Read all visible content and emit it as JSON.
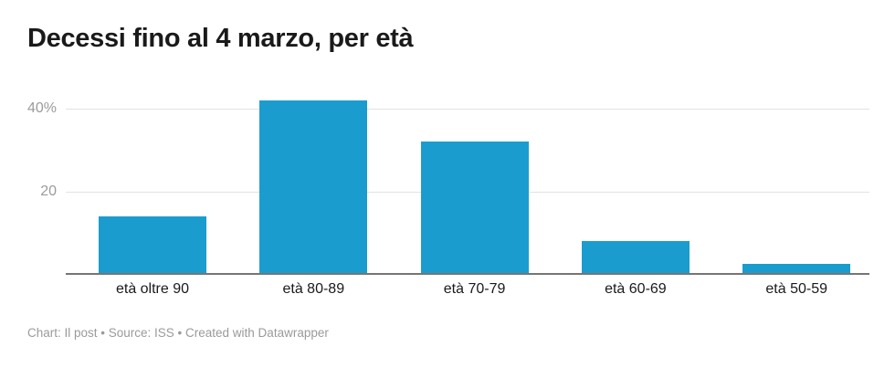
{
  "title": "Decessi fino al 4 marzo, per età",
  "footer": "Chart: Il post • Source: ISS • Created with Datawrapper",
  "colors": {
    "bar": "#1a9dce",
    "title_text": "#1a1a1a",
    "ytick_text": "#9b9b9b",
    "xtick_text": "#1a1a1a",
    "gridline": "#e2e2e2",
    "baseline": "#757575",
    "footer_text": "#9a9a9a",
    "background": "#ffffff"
  },
  "chart_data": {
    "type": "bar",
    "title": "Decessi fino al 4 marzo, per età",
    "categories": [
      "età oltre 90",
      "età 80-89",
      "età 70-79",
      "età 60-69",
      "età 50-59"
    ],
    "values": [
      14,
      42,
      32,
      8,
      2.5
    ],
    "unit": "%",
    "xlabel": "",
    "ylabel": "",
    "ylim": [
      0,
      45
    ],
    "yticks": [
      {
        "value": 20,
        "label": "20"
      },
      {
        "value": 40,
        "label": "40%"
      }
    ],
    "grid": true,
    "legend": false,
    "source_note": "Chart: Il post • Source: ISS • Created with Datawrapper"
  }
}
